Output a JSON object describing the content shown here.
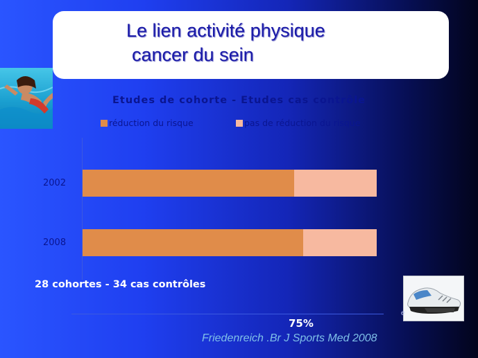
{
  "slide": {
    "title_line1": "Le lien activité physique",
    "title_line2": "cancer du sein",
    "cohort_note": "28 cohortes - 34 cas contrôles",
    "percentage": "75%",
    "citation": "Friedenreich .Br J Sports Med 2008",
    "fragment": "e"
  },
  "chart_data": {
    "type": "bar",
    "orientation": "horizontal",
    "stacked": true,
    "title": "Etudes de cohorte - Etudes cas contrôle",
    "categories": [
      "2002",
      "2008"
    ],
    "series": [
      {
        "name": "réduction du risque",
        "values": [
          72,
          75
        ],
        "color": "#e08c4a"
      },
      {
        "name": "pas de réduction du risque",
        "values": [
          28,
          25
        ],
        "color": "#f7b9a0"
      }
    ],
    "xlim": [
      0,
      100
    ],
    "legend": "top"
  },
  "colors": {
    "title_text": "#1a1aa8",
    "chart_text": "#0a1590",
    "citation": "#7fc0e8"
  },
  "icons": [
    "swimmer-photo",
    "running-shoe-photo"
  ]
}
